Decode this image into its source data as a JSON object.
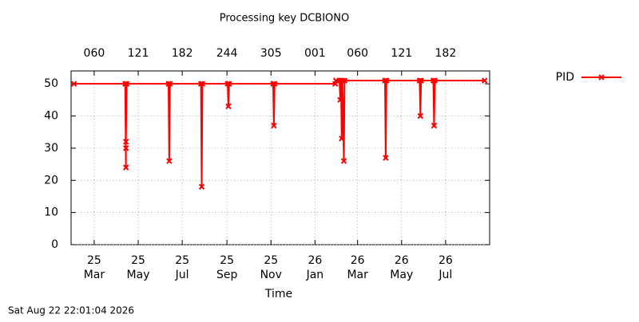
{
  "chart_data": {
    "type": "line",
    "title": "Processing key DCBIONO",
    "xlabel": "Time",
    "xlim": [
      27,
      607
    ],
    "ylim": [
      0,
      54
    ],
    "yticks": [
      0,
      10,
      20,
      30,
      40,
      50
    ],
    "xticks": [
      {
        "value": 59,
        "label": "25\nMar"
      },
      {
        "value": 120,
        "label": "25\nMay"
      },
      {
        "value": 181,
        "label": "25\nJul"
      },
      {
        "value": 243,
        "label": "25\nSep"
      },
      {
        "value": 304,
        "label": "25\nNov"
      },
      {
        "value": 365,
        "label": "26\nJan"
      },
      {
        "value": 424,
        "label": "26\nMar"
      },
      {
        "value": 485,
        "label": "26\nMay"
      },
      {
        "value": 546,
        "label": "26\nJul"
      }
    ],
    "x2ticks": [
      {
        "value": 59,
        "label": "060"
      },
      {
        "value": 120,
        "label": "121"
      },
      {
        "value": 181,
        "label": "182"
      },
      {
        "value": 243,
        "label": "244"
      },
      {
        "value": 304,
        "label": "305"
      },
      {
        "value": 365,
        "label": "001"
      },
      {
        "value": 424,
        "label": "060"
      },
      {
        "value": 485,
        "label": "121"
      },
      {
        "value": 546,
        "label": "182"
      }
    ],
    "grid": true,
    "legend": "top-right",
    "series": [
      {
        "name": "PID",
        "color": "#ff0000",
        "x": [
          31,
          102,
          103,
          103,
          103,
          104,
          162,
          163,
          164,
          207,
          208,
          209,
          244,
          245,
          246,
          307,
          308,
          309,
          393,
          394,
          399,
          400,
          401,
          402,
          403,
          405,
          406,
          462,
          463,
          464,
          510,
          511,
          512,
          529,
          530,
          531,
          600
        ],
        "values": [
          50,
          50,
          24,
          30,
          32,
          50,
          50,
          26,
          50,
          50,
          18,
          50,
          50,
          43,
          50,
          50,
          37,
          50,
          50,
          51,
          51,
          45,
          51,
          33,
          51,
          26,
          51,
          51,
          27,
          51,
          51,
          40,
          51,
          51,
          37,
          51,
          51
        ]
      }
    ]
  },
  "footer": "Sat Aug 22 22:01:04 2026"
}
